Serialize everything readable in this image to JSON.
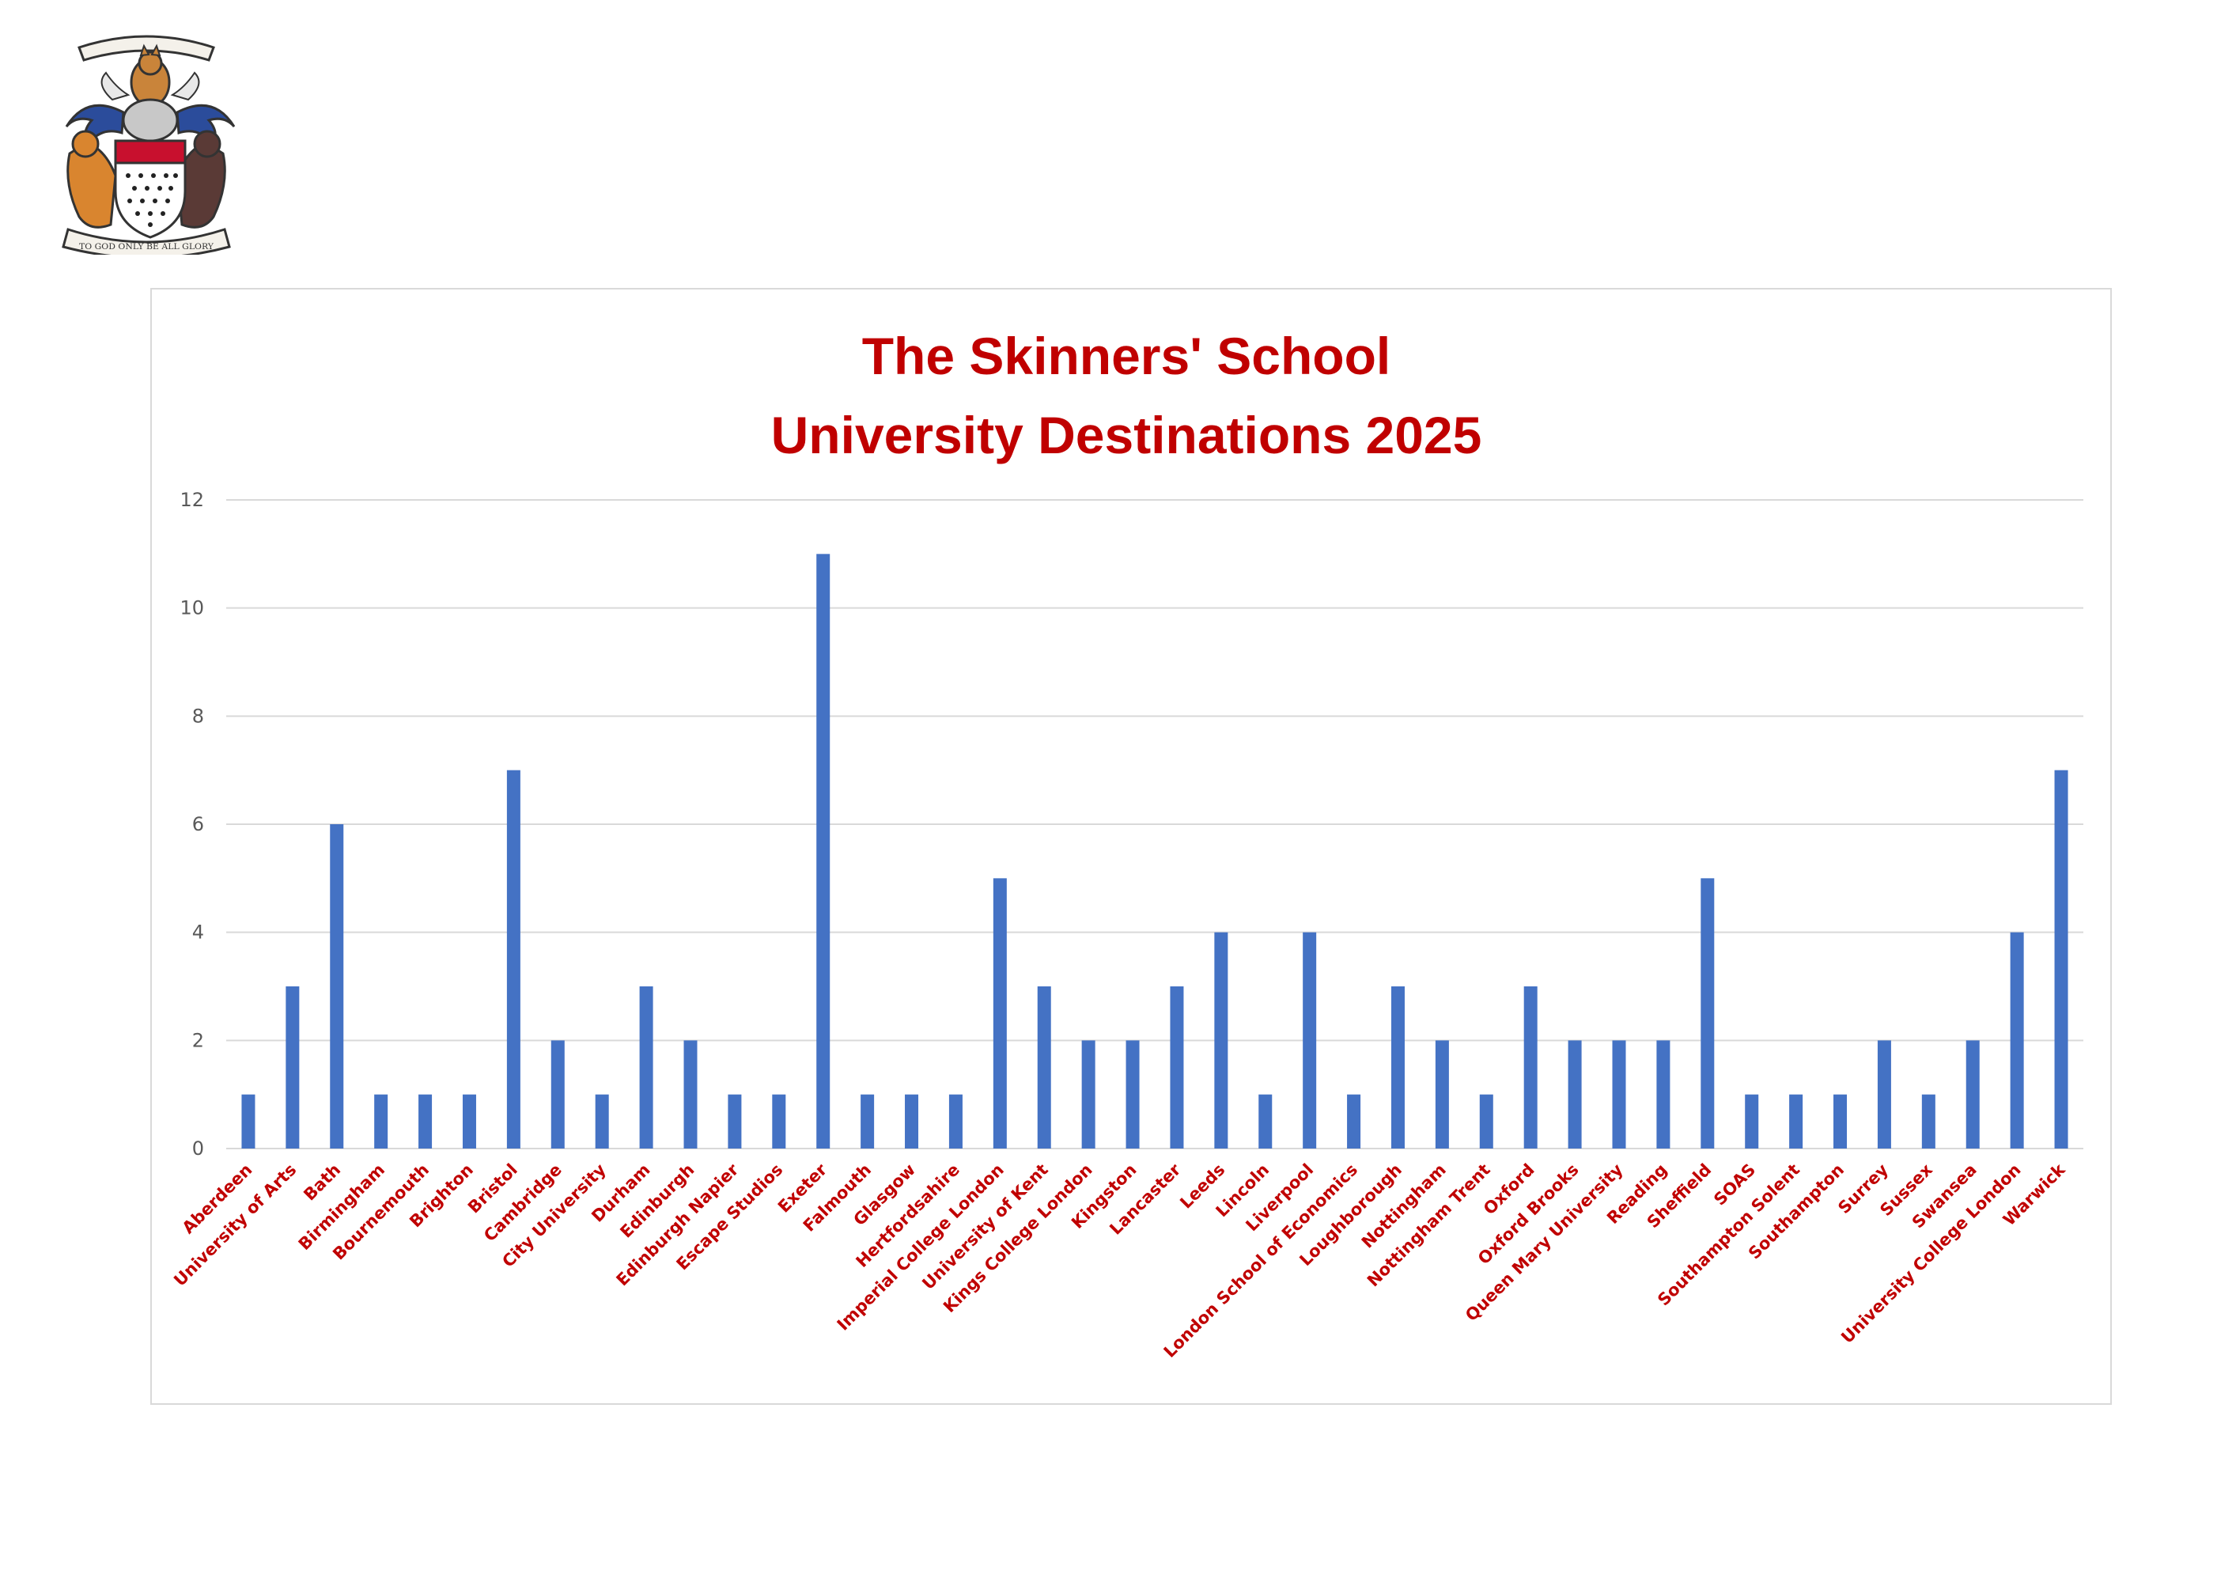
{
  "chart_data": {
    "type": "bar",
    "title_line1": "The Skinners' School",
    "title_line2": "University Destinations 2025",
    "xlabel": "",
    "ylabel": "",
    "ylim": [
      0,
      12
    ],
    "yticks": [
      0,
      2,
      4,
      6,
      8,
      10,
      12
    ],
    "grid": true,
    "legend": "none",
    "bar_color": "#4472c4",
    "label_color": "#c00000",
    "categories": [
      "Aberdeen",
      "University of Arts",
      "Bath",
      "Birmingham",
      "Bournemouth",
      "Brighton",
      "Bristol",
      "Cambridge",
      "City University",
      "Durham",
      "Edinburgh",
      "Edinburgh Napier",
      "Escape Studios",
      "Exeter",
      "Falmouth",
      "Glasgow",
      "Hertfordsahire",
      "Imperial College London",
      "University of Kent",
      "Kings College London",
      "Kingston",
      "Lancaster",
      "Leeds",
      "Lincoln",
      "Liverpool",
      "London School of Economics",
      "Loughborough",
      "Nottingham",
      "Nottingham Trent",
      "Oxford",
      "Oxford Brooks",
      "Queen Mary University",
      "Reading",
      "Sheffield",
      "SOAS",
      "Southampton Solent",
      "Southampton",
      "Surrey",
      "Sussex",
      "Swansea",
      "University College London",
      "Warwick"
    ],
    "values": [
      1,
      3,
      6,
      1,
      1,
      1,
      7,
      2,
      1,
      3,
      2,
      1,
      1,
      11,
      1,
      1,
      1,
      5,
      3,
      2,
      2,
      3,
      4,
      1,
      4,
      1,
      3,
      2,
      1,
      3,
      2,
      2,
      2,
      5,
      1,
      1,
      1,
      2,
      1,
      2,
      4,
      7
    ]
  },
  "crest": {
    "motto": "TO GOD ONLY BE ALL GLORY",
    "icon": "coat-of-arms-icon"
  }
}
